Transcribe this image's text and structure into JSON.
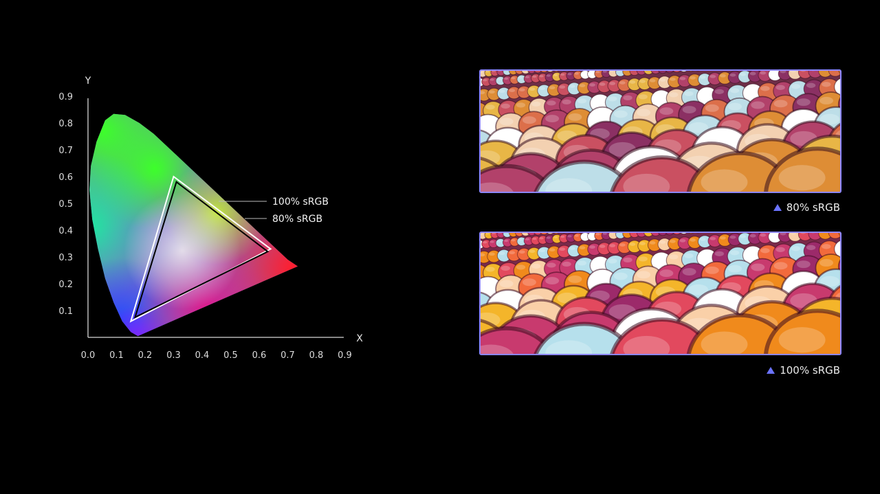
{
  "chart_data": {
    "type": "chromaticity-diagram",
    "xlabel": "X",
    "ylabel": "Y",
    "xlim": [
      0.0,
      0.9
    ],
    "ylim": [
      0.0,
      0.9
    ],
    "x_ticks": [
      "0.0",
      "0.1",
      "0.2",
      "0.3",
      "0.4",
      "0.5",
      "0.6",
      "0.7",
      "0.8",
      "0.9"
    ],
    "y_ticks": [
      "0.1",
      "0.2",
      "0.3",
      "0.4",
      "0.5",
      "0.6",
      "0.7",
      "0.8",
      "0.9"
    ],
    "spectral_locus": [
      [
        0.175,
        0.005
      ],
      [
        0.15,
        0.02
      ],
      [
        0.12,
        0.06
      ],
      [
        0.09,
        0.13
      ],
      [
        0.06,
        0.22
      ],
      [
        0.035,
        0.33
      ],
      [
        0.015,
        0.44
      ],
      [
        0.005,
        0.55
      ],
      [
        0.01,
        0.64
      ],
      [
        0.03,
        0.73
      ],
      [
        0.06,
        0.81
      ],
      [
        0.09,
        0.834
      ],
      [
        0.13,
        0.83
      ],
      [
        0.18,
        0.8
      ],
      [
        0.23,
        0.76
      ],
      [
        0.28,
        0.71
      ],
      [
        0.34,
        0.65
      ],
      [
        0.4,
        0.59
      ],
      [
        0.46,
        0.53
      ],
      [
        0.52,
        0.47
      ],
      [
        0.58,
        0.41
      ],
      [
        0.64,
        0.35
      ],
      [
        0.7,
        0.29
      ],
      [
        0.735,
        0.265
      ]
    ],
    "gamuts": [
      {
        "name": "100% sRGB",
        "stroke": "#ffffff",
        "points": [
          [
            0.64,
            0.33
          ],
          [
            0.3,
            0.6
          ],
          [
            0.15,
            0.06
          ]
        ]
      },
      {
        "name": "80% sRGB",
        "stroke": "#000000",
        "points": [
          [
            0.63,
            0.32
          ],
          [
            0.31,
            0.58
          ],
          [
            0.165,
            0.075
          ]
        ]
      }
    ]
  },
  "callouts": {
    "srgb100": "100% sRGB",
    "srgb80": "80% sRGB"
  },
  "samples": [
    {
      "caption": "80% sRGB",
      "icon": "triangle-icon",
      "saturation": 0.8
    },
    {
      "caption": "100% sRGB",
      "icon": "triangle-icon",
      "saturation": 1.0
    }
  ],
  "colors": {
    "panel_border": "#8c86ff",
    "caption_icon": "#6b73ff",
    "background": "#000000"
  }
}
